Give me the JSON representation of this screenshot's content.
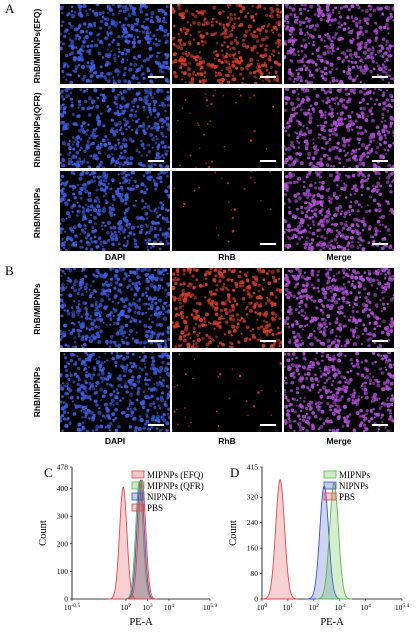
{
  "panel_labels": {
    "A": "A",
    "B": "B",
    "C": "C",
    "D": "D"
  },
  "panel_A": {
    "rows": [
      "RhB/MIPNPs(EFQ)",
      "RhB/MIPNPs(QFR)",
      "RhB/NIPNPs"
    ],
    "columns": [
      "DAPI",
      "RhB",
      "Merge"
    ]
  },
  "panel_B": {
    "rows": [
      "RhB/MIPNPs",
      "RhB/NIPNPs"
    ],
    "columns": [
      "DAPI",
      "RhB",
      "Merge"
    ]
  },
  "colors": {
    "dapi": "#3c5fe6",
    "rhb": "#d23c2a",
    "merge": "#b14fd8",
    "pbs": "#e0474c",
    "mip_efq": "#e0474c",
    "mip_qfr": "#5cb84a",
    "nip": "#3a55c8",
    "mip": "#5cb84a"
  },
  "chart_data": [
    {
      "type": "area",
      "title": "",
      "xlabel": "PE-A",
      "ylabel": "Count",
      "xscale": "log",
      "ylim": [
        0,
        478
      ],
      "y_ticks": [
        "0",
        "100",
        "200",
        "300",
        "400",
        "478"
      ],
      "x_ticks": [
        "10^-0.5",
        "10^2",
        "10^3",
        "10^4",
        "10^5.9"
      ],
      "legend_position": "top-right",
      "legend": [
        "MIPNPs (EFQ)",
        "MIPNPs (QFR)",
        "NIPNPs",
        "PBS"
      ],
      "series": [
        {
          "name": "MIPNPs (EFQ)",
          "peak_x": 560,
          "peak_count": 430
        },
        {
          "name": "MIPNPs (QFR)",
          "peak_x": 420,
          "peak_count": 425
        },
        {
          "name": "NIPNPs",
          "peak_x": 480,
          "peak_count": 430
        },
        {
          "name": "PBS",
          "peak_x": 75,
          "peak_count": 405
        }
      ]
    },
    {
      "type": "area",
      "title": "",
      "xlabel": "PE-A",
      "ylabel": "Count",
      "xscale": "log",
      "ylim": [
        0,
        415
      ],
      "y_ticks": [
        "0",
        "80",
        "160",
        "240",
        "320",
        "415"
      ],
      "x_ticks": [
        "10^0",
        "10^1",
        "10^2",
        "10^3",
        "10^4",
        "10^5.4"
      ],
      "legend_position": "top-right",
      "legend": [
        "MIPNPs",
        "NIPNPs",
        "PBS"
      ],
      "series": [
        {
          "name": "MIPNPs",
          "peak_x": 600,
          "peak_count": 365
        },
        {
          "name": "NIPNPs",
          "peak_x": 250,
          "peak_count": 355
        },
        {
          "name": "PBS",
          "peak_x": 5,
          "peak_count": 375
        }
      ]
    }
  ]
}
